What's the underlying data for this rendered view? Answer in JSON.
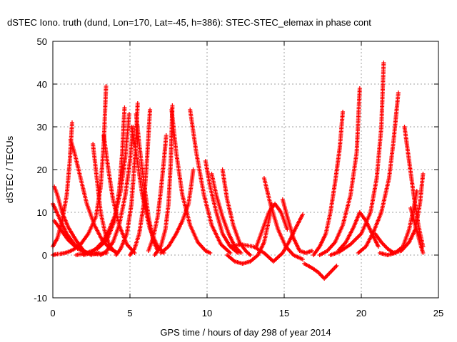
{
  "chart_data": {
    "type": "scatter",
    "title": "dSTEC Iono. truth (dund, Lon=170, Lat=-45, h=386): STEC-STEC_elemax in phase cont",
    "xlabel": "GPS time / hours of day 298 of year 2014",
    "ylabel": "dSTEC  / TECUs",
    "xlim": [
      0,
      25
    ],
    "ylim": [
      -10,
      50
    ],
    "xticks": [
      "0",
      "5",
      "10",
      "15",
      "20",
      "25"
    ],
    "yticks": [
      "-10",
      "0",
      "10",
      "20",
      "30",
      "40",
      "50"
    ],
    "grid": true,
    "marker": "+",
    "series_color": "#ff0000",
    "series": [
      {
        "x": [
          0.0,
          0.2,
          0.5,
          0.9,
          1.3,
          1.8,
          2.3,
          2.8,
          3.1,
          3.3,
          3.45
        ],
        "y": [
          0.0,
          0.2,
          0.3,
          0.6,
          1.2,
          2.5,
          5.0,
          9.0,
          16.0,
          26.0,
          39.5
        ]
      },
      {
        "x": [
          0.0,
          0.3,
          0.6,
          0.9,
          1.1,
          1.25
        ],
        "y": [
          2.0,
          4.0,
          8.0,
          14.0,
          22.0,
          31.0
        ]
      },
      {
        "x": [
          0.1,
          0.3,
          0.6,
          1.0,
          1.5,
          2.0,
          2.5
        ],
        "y": [
          16.0,
          14.0,
          10.0,
          6.5,
          3.5,
          1.0,
          0.0
        ]
      },
      {
        "x": [
          0.0,
          0.2,
          0.5,
          0.9,
          1.4,
          2.0,
          2.6,
          3.0
        ],
        "y": [
          12.0,
          10.5,
          8.0,
          5.0,
          2.5,
          0.8,
          0.2,
          0.5
        ]
      },
      {
        "x": [
          0.1,
          0.5,
          1.0,
          1.6,
          2.2,
          2.9,
          3.5
        ],
        "y": [
          8.0,
          6.0,
          3.5,
          1.5,
          0.5,
          0.2,
          0.5
        ]
      },
      {
        "x": [
          1.15,
          1.4,
          1.8,
          2.2,
          2.7,
          3.2,
          3.7,
          4.2
        ],
        "y": [
          27.0,
          24.0,
          18.0,
          12.0,
          7.0,
          3.5,
          1.5,
          0.5
        ]
      },
      {
        "x": [
          2.6,
          2.85,
          3.1,
          3.4,
          3.7,
          4.1
        ],
        "y": [
          26.0,
          18.0,
          10.0,
          5.0,
          2.0,
          0.5
        ]
      },
      {
        "x": [
          2.0,
          2.4,
          2.8,
          3.2,
          3.6,
          4.0,
          4.4,
          4.7,
          4.95
        ],
        "y": [
          0.0,
          0.5,
          1.5,
          3.0,
          5.5,
          9.0,
          15.0,
          23.0,
          33.0
        ]
      },
      {
        "x": [
          1.5,
          2.2,
          2.9,
          3.5,
          4.0,
          4.3,
          4.5,
          4.65
        ],
        "y": [
          0.0,
          0.5,
          1.5,
          3.5,
          8.0,
          15.0,
          24.0,
          34.5
        ]
      },
      {
        "x": [
          3.3,
          3.6,
          3.9,
          4.3,
          4.8,
          5.3
        ],
        "y": [
          28.0,
          20.0,
          13.0,
          7.0,
          2.5,
          0.5
        ]
      },
      {
        "x": [
          3.1,
          3.5,
          3.9,
          4.3,
          4.7,
          5.0,
          5.2
        ],
        "y": [
          0.0,
          1.0,
          3.0,
          7.0,
          14.0,
          22.0,
          30.0
        ]
      },
      {
        "x": [
          4.1,
          4.4,
          4.8,
          5.1,
          5.35,
          5.5
        ],
        "y": [
          0.0,
          1.5,
          5.0,
          12.0,
          24.0,
          35.5
        ]
      },
      {
        "x": [
          5.4,
          5.6,
          5.9,
          6.2,
          6.5,
          6.8
        ],
        "y": [
          33.0,
          26.0,
          17.0,
          9.0,
          3.5,
          1.0
        ]
      },
      {
        "x": [
          5.0,
          5.3,
          5.6,
          5.9,
          6.1,
          6.3
        ],
        "y": [
          0.0,
          1.5,
          5.0,
          12.0,
          22.0,
          34.0
        ]
      },
      {
        "x": [
          5.1,
          5.4,
          5.8,
          6.3,
          6.8,
          7.2
        ],
        "y": [
          30.0,
          24.0,
          14.0,
          6.0,
          2.0,
          0.5
        ]
      },
      {
        "x": [
          6.2,
          6.5,
          6.8,
          7.0,
          7.2,
          7.35
        ],
        "y": [
          1.0,
          4.0,
          9.0,
          15.0,
          22.0,
          28.0
        ]
      },
      {
        "x": [
          6.6,
          7.0,
          7.3,
          7.5,
          7.65,
          7.75
        ],
        "y": [
          0.0,
          2.0,
          6.0,
          12.0,
          22.0,
          35.0
        ]
      },
      {
        "x": [
          7.7,
          8.0,
          8.4,
          8.9,
          9.4,
          9.9,
          10.2
        ],
        "y": [
          34.0,
          24.0,
          14.0,
          7.0,
          3.0,
          1.0,
          0.5
        ]
      },
      {
        "x": [
          7.0,
          7.5,
          8.0,
          8.4,
          8.8,
          9.0,
          9.1
        ],
        "y": [
          0.5,
          2.0,
          5.0,
          8.0,
          12.0,
          17.0,
          20.0
        ]
      },
      {
        "x": [
          8.9,
          9.3,
          9.8,
          10.3,
          10.9,
          11.5
        ],
        "y": [
          34.0,
          24.0,
          14.0,
          7.0,
          2.5,
          0.5
        ]
      },
      {
        "x": [
          9.9,
          10.2,
          10.6,
          11.0,
          11.5,
          12.0
        ],
        "y": [
          22.0,
          16.0,
          10.0,
          5.0,
          2.0,
          0.5
        ]
      },
      {
        "x": [
          10.3,
          10.6,
          11.0,
          11.4,
          11.8,
          12.2
        ],
        "y": [
          19.0,
          14.0,
          9.0,
          5.0,
          2.0,
          0.5
        ]
      },
      {
        "x": [
          11.0,
          11.3,
          11.7,
          12.1,
          12.5,
          12.8
        ],
        "y": [
          20.0,
          13.0,
          7.0,
          3.0,
          1.0,
          0.0
        ]
      },
      {
        "x": [
          11.3,
          11.8,
          12.3,
          12.8,
          13.3,
          13.7,
          14.0,
          14.2
        ],
        "y": [
          0.0,
          -1.5,
          -2.0,
          -1.5,
          0.0,
          3.0,
          8.0,
          12.0
        ]
      },
      {
        "x": [
          13.2,
          13.6,
          14.0,
          14.4,
          14.8,
          15.2
        ],
        "y": [
          2.0,
          6.0,
          10.0,
          12.0,
          10.0,
          6.0
        ]
      },
      {
        "x": [
          13.7,
          14.1,
          14.6,
          15.1,
          15.6,
          16.2
        ],
        "y": [
          18.0,
          12.0,
          6.0,
          2.0,
          0.0,
          -1.0
        ]
      },
      {
        "x": [
          14.9,
          15.2,
          15.6,
          16.0,
          16.4,
          16.8
        ],
        "y": [
          13.0,
          9.0,
          4.0,
          1.0,
          0.5,
          1.0
        ]
      },
      {
        "x": [
          11.5,
          12.2,
          13.0,
          13.7,
          14.3,
          14.9,
          15.3,
          15.7,
          16.2
        ],
        "y": [
          2.0,
          2.5,
          2.0,
          0.5,
          -1.5,
          0.5,
          3.0,
          6.0,
          9.5
        ]
      },
      {
        "x": [
          16.3,
          16.8,
          17.2,
          17.6,
          18.0,
          18.4
        ],
        "y": [
          -2.0,
          -3.0,
          -4.0,
          -5.5,
          -4.0,
          -2.5
        ]
      },
      {
        "x": [
          16.9,
          17.3,
          17.7,
          18.0,
          18.3,
          18.6,
          18.8
        ],
        "y": [
          0.0,
          2.0,
          5.0,
          10.0,
          17.0,
          25.0,
          33.5
        ]
      },
      {
        "x": [
          17.3,
          17.8,
          18.3,
          18.8,
          19.3,
          19.7,
          19.9
        ],
        "y": [
          0.0,
          1.0,
          3.0,
          7.0,
          14.0,
          24.0,
          39.0
        ]
      },
      {
        "x": [
          18.0,
          18.6,
          19.3,
          20.0,
          20.6,
          21.0,
          21.3,
          21.45
        ],
        "y": [
          0.0,
          0.8,
          2.5,
          5.0,
          10.0,
          18.0,
          30.0,
          45.0
        ]
      },
      {
        "x": [
          18.5,
          19.0,
          19.5,
          19.9,
          20.3,
          20.7,
          21.1
        ],
        "y": [
          1.0,
          3.0,
          6.5,
          10.0,
          8.0,
          5.0,
          2.0
        ]
      },
      {
        "x": [
          19.8,
          20.3,
          20.8,
          21.3,
          21.8,
          22.1,
          22.4
        ],
        "y": [
          0.5,
          2.0,
          5.5,
          10.0,
          18.0,
          27.0,
          38.0
        ]
      },
      {
        "x": [
          21.2,
          21.7,
          22.2,
          22.7,
          23.1,
          23.4,
          23.6
        ],
        "y": [
          0.5,
          0.0,
          0.5,
          2.0,
          6.0,
          11.0,
          15.0
        ]
      },
      {
        "x": [
          22.8,
          23.1,
          23.4,
          23.7,
          24.0
        ],
        "y": [
          30.0,
          22.0,
          14.0,
          7.0,
          2.0
        ]
      },
      {
        "x": [
          22.0,
          22.6,
          23.1,
          23.5,
          23.8,
          24.0
        ],
        "y": [
          0.5,
          1.0,
          3.0,
          6.0,
          12.0,
          19.0
        ]
      },
      {
        "x": [
          23.2,
          23.5,
          23.8,
          24.0
        ],
        "y": [
          11.0,
          7.0,
          3.0,
          0.5
        ]
      },
      {
        "x": [
          20.9,
          21.3,
          21.7,
          22.1
        ],
        "y": [
          5.0,
          3.0,
          1.5,
          0.5
        ]
      }
    ]
  }
}
